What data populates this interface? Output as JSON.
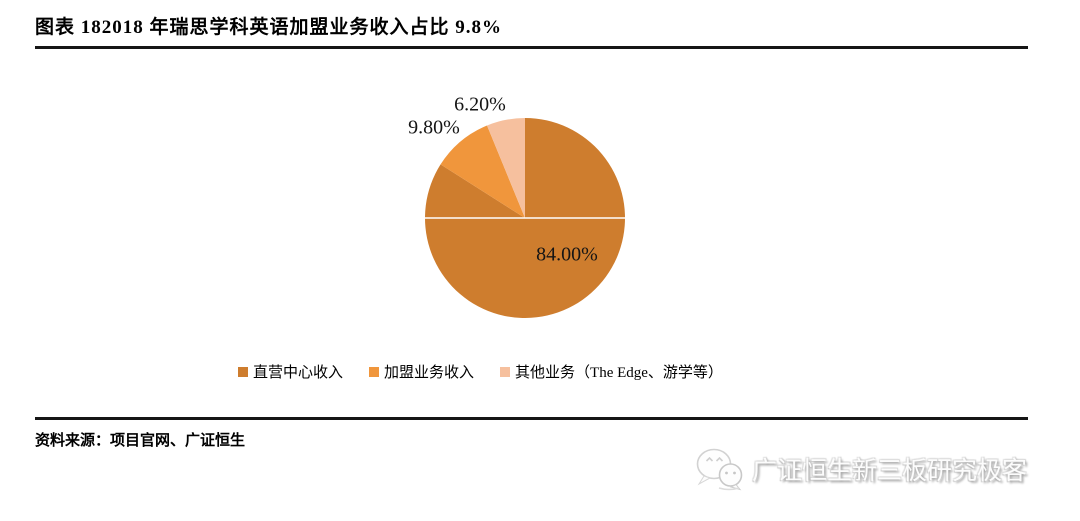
{
  "title": "图表 182018 年瑞思学科英语加盟业务收入占比 9.8%",
  "source": "资料来源：项目官网、广证恒生",
  "watermark": "广证恒生新三板研究极客",
  "chart_data": {
    "type": "pie",
    "title": "2018 年瑞思学科英语加盟业务收入占比 9.8%",
    "slices": [
      {
        "label": "直营中心收入",
        "value": 84.0,
        "display": "84.00%",
        "color": "#CE7D2E"
      },
      {
        "label": "加盟业务收入",
        "value": 9.8,
        "display": "9.80%",
        "color": "#F0963C"
      },
      {
        "label": "其他业务（The Edge、游学等）",
        "value": 6.2,
        "display": "6.20%",
        "color": "#F6C09E"
      }
    ],
    "start_angle_deg": 0,
    "direction": "clockwise",
    "legend_position": "bottom",
    "equator_line_color": "#ffffff"
  }
}
